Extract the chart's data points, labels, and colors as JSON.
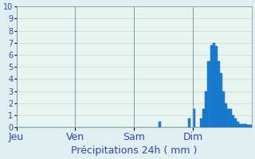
{
  "title": "Précipitations 24h ( mm )",
  "background_color": "#e0f0f0",
  "plot_background": "#e8f4f0",
  "grid_color": "#c8d8d0",
  "bar_color": "#1a7fd4",
  "bar_edge_color": "#1060b0",
  "ylim": [
    0,
    10
  ],
  "yticks": [
    0,
    1,
    2,
    3,
    4,
    5,
    6,
    7,
    8,
    9,
    10
  ],
  "day_labels": [
    "Jeu",
    "Ven",
    "Sam",
    "Dim"
  ],
  "day_positions": [
    0,
    24,
    48,
    72
  ],
  "num_bars": 96,
  "bar_values": [
    0,
    0,
    0,
    0,
    0,
    0,
    0,
    0,
    0,
    0,
    0,
    0,
    0,
    0,
    0,
    0,
    0,
    0,
    0,
    0,
    0,
    0,
    0,
    0,
    0,
    0,
    0,
    0,
    0,
    0,
    0,
    0,
    0,
    0,
    0,
    0,
    0,
    0,
    0,
    0,
    0,
    0,
    0,
    0,
    0,
    0,
    0,
    0,
    0,
    0,
    0,
    0,
    0,
    0,
    0,
    0,
    0,
    0,
    0.5,
    0,
    0,
    0,
    0,
    0,
    0,
    0,
    0,
    0,
    0,
    0,
    0.7,
    0,
    1.5,
    0,
    0,
    0.7,
    1.5,
    3.0,
    5.5,
    6.8,
    7.0,
    6.7,
    5.5,
    4.5,
    3.0,
    2.0,
    1.5,
    1.5,
    1.0,
    0.7,
    0.5,
    0.3,
    0.3,
    0.3,
    0.2,
    0.2
  ],
  "xlabel_fontsize": 9,
  "tick_fontsize": 7,
  "label_color": "#3344aa"
}
